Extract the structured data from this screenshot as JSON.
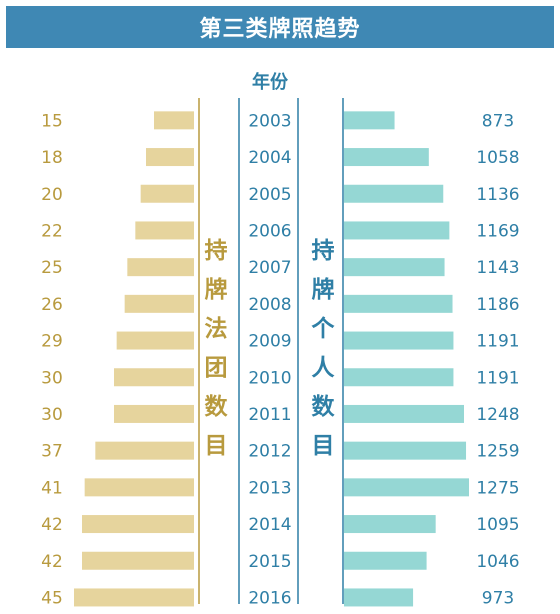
{
  "title": "第三类牌照趋势",
  "year_header": "年份",
  "left_label": "持牌法团数目",
  "right_label": "持牌个人数目",
  "colors": {
    "header_bg": "#3f88b4",
    "left_bar": "#e6d49d",
    "left_text": "#b89a3e",
    "right_bar": "#95d7d4",
    "right_text": "#2f7fa6"
  },
  "chart_data": {
    "type": "bar",
    "categories": [
      "2003",
      "2004",
      "2005",
      "2006",
      "2007",
      "2008",
      "2009",
      "2010",
      "2011",
      "2012",
      "2013",
      "2014",
      "2015",
      "2016"
    ],
    "series": [
      {
        "name": "持牌法团数目",
        "values": [
          15,
          18,
          20,
          22,
          25,
          26,
          29,
          30,
          30,
          37,
          41,
          42,
          42,
          45
        ]
      },
      {
        "name": "持牌个人数目",
        "values": [
          873,
          1058,
          1136,
          1169,
          1143,
          1186,
          1191,
          1191,
          1248,
          1259,
          1275,
          1095,
          1046,
          973
        ]
      }
    ]
  }
}
